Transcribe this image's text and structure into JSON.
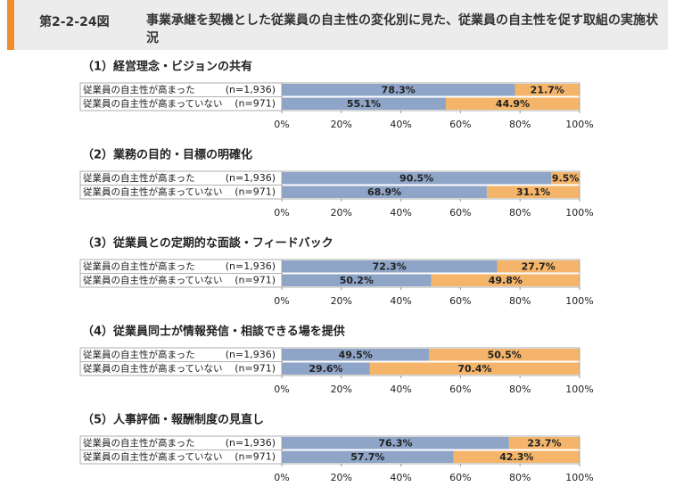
{
  "header": {
    "label": "第2-2-24図",
    "title": "事業承継を契機とした従業員の自主性の変化別に見た、従業員の自主性を促す取組の実施状況"
  },
  "chart_data": [
    {
      "type": "stacked-bar-horizontal",
      "title": "（1）経営理念・ビジョンの共有",
      "categories": [
        "従業員の自主性が高まった",
        "従業員の自主性が高まっていない"
      ],
      "category_notes": [
        "(n=1,936)",
        "(n=971)"
      ],
      "series": [
        {
          "color": "#8ea5c8",
          "values": [
            78.3,
            55.1
          ],
          "value_labels": [
            "78.3%",
            "55.1%"
          ]
        },
        {
          "color": "#f4b56a",
          "values": [
            21.7,
            44.9
          ],
          "value_labels": [
            "21.7%",
            "44.9%"
          ]
        }
      ],
      "xlim": [
        0,
        100
      ],
      "xticks": [
        {
          "value": 0,
          "label": "0%"
        },
        {
          "value": 20,
          "label": "20%"
        },
        {
          "value": 40,
          "label": "40%"
        },
        {
          "value": 60,
          "label": "60%"
        },
        {
          "value": 80,
          "label": "80%"
        },
        {
          "value": 100,
          "label": "100%"
        }
      ]
    },
    {
      "type": "stacked-bar-horizontal",
      "title": "（2）業務の目的・目標の明確化",
      "categories": [
        "従業員の自主性が高まった",
        "従業員の自主性が高まっていない"
      ],
      "category_notes": [
        "(n=1,936)",
        "(n=971)"
      ],
      "series": [
        {
          "color": "#8ea5c8",
          "values": [
            90.5,
            68.9
          ],
          "value_labels": [
            "90.5%",
            "68.9%"
          ]
        },
        {
          "color": "#f4b56a",
          "values": [
            9.5,
            31.1
          ],
          "value_labels": [
            "9.5%",
            "31.1%"
          ]
        }
      ],
      "xlim": [
        0,
        100
      ],
      "xticks": [
        {
          "value": 0,
          "label": "0%"
        },
        {
          "value": 20,
          "label": "20%"
        },
        {
          "value": 40,
          "label": "40%"
        },
        {
          "value": 60,
          "label": "60%"
        },
        {
          "value": 80,
          "label": "80%"
        },
        {
          "value": 100,
          "label": "100%"
        }
      ]
    },
    {
      "type": "stacked-bar-horizontal",
      "title": "（3）従業員との定期的な面談・フィードバック",
      "categories": [
        "従業員の自主性が高まった",
        "従業員の自主性が高まっていない"
      ],
      "category_notes": [
        "(n=1,936)",
        "(n=971)"
      ],
      "series": [
        {
          "color": "#8ea5c8",
          "values": [
            72.3,
            50.2
          ],
          "value_labels": [
            "72.3%",
            "50.2%"
          ]
        },
        {
          "color": "#f4b56a",
          "values": [
            27.7,
            49.8
          ],
          "value_labels": [
            "27.7%",
            "49.8%"
          ]
        }
      ],
      "xlim": [
        0,
        100
      ],
      "xticks": [
        {
          "value": 0,
          "label": "0%"
        },
        {
          "value": 20,
          "label": "20%"
        },
        {
          "value": 40,
          "label": "40%"
        },
        {
          "value": 60,
          "label": "60%"
        },
        {
          "value": 80,
          "label": "80%"
        },
        {
          "value": 100,
          "label": "100%"
        }
      ]
    },
    {
      "type": "stacked-bar-horizontal",
      "title": "（4）従業員同士が情報発信・相談できる場を提供",
      "categories": [
        "従業員の自主性が高まった",
        "従業員の自主性が高まっていない"
      ],
      "category_notes": [
        "(n=1,936)",
        "(n=971)"
      ],
      "series": [
        {
          "color": "#8ea5c8",
          "values": [
            49.5,
            29.6
          ],
          "value_labels": [
            "49.5%",
            "29.6%"
          ]
        },
        {
          "color": "#f4b56a",
          "values": [
            50.5,
            70.4
          ],
          "value_labels": [
            "50.5%",
            "70.4%"
          ]
        }
      ],
      "xlim": [
        0,
        100
      ],
      "xticks": [
        {
          "value": 0,
          "label": "0%"
        },
        {
          "value": 20,
          "label": "20%"
        },
        {
          "value": 40,
          "label": "40%"
        },
        {
          "value": 60,
          "label": "60%"
        },
        {
          "value": 80,
          "label": "80%"
        },
        {
          "value": 100,
          "label": "100%"
        }
      ]
    },
    {
      "type": "stacked-bar-horizontal",
      "title": "（5）人事評価・報酬制度の見直し",
      "categories": [
        "従業員の自主性が高まった",
        "従業員の自主性が高まっていない"
      ],
      "category_notes": [
        "(n=1,936)",
        "(n=971)"
      ],
      "series": [
        {
          "color": "#8ea5c8",
          "values": [
            76.3,
            57.7
          ],
          "value_labels": [
            "76.3%",
            "57.7%"
          ]
        },
        {
          "color": "#f4b56a",
          "values": [
            23.7,
            42.3
          ],
          "value_labels": [
            "23.7%",
            "42.3%"
          ]
        }
      ],
      "xlim": [
        0,
        100
      ],
      "xticks": [
        {
          "value": 0,
          "label": "0%"
        },
        {
          "value": 20,
          "label": "20%"
        },
        {
          "value": 40,
          "label": "40%"
        },
        {
          "value": 60,
          "label": "60%"
        },
        {
          "value": 80,
          "label": "80%"
        },
        {
          "value": 100,
          "label": "100%"
        }
      ]
    }
  ]
}
